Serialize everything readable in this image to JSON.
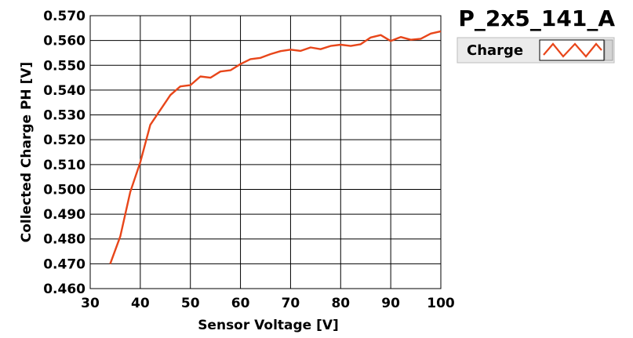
{
  "chart_data": {
    "type": "line",
    "title": "P_2x5_141_A",
    "xlabel": "Sensor Voltage [V]",
    "ylabel": "Collected Charge PH [V]",
    "xlim": [
      30,
      100
    ],
    "ylim": [
      0.46,
      0.57
    ],
    "xticks": [
      "30",
      "40",
      "50",
      "60",
      "70",
      "80",
      "90",
      "100"
    ],
    "yticks": [
      "0.460",
      "0.470",
      "0.480",
      "0.490",
      "0.500",
      "0.510",
      "0.520",
      "0.530",
      "0.540",
      "0.550",
      "0.560",
      "0.570"
    ],
    "grid": true,
    "legend": {
      "position": "top-right",
      "entries": [
        "Charge"
      ]
    },
    "series": [
      {
        "name": "Charge",
        "color": "#e8461a",
        "x": [
          34,
          36,
          38,
          40,
          42,
          44,
          46,
          48,
          50,
          52,
          54,
          56,
          58,
          60,
          62,
          64,
          66,
          68,
          70,
          72,
          74,
          76,
          78,
          80,
          82,
          84,
          86,
          88,
          90,
          92,
          94,
          96,
          98,
          100
        ],
        "y": [
          0.47,
          0.481,
          0.499,
          0.511,
          0.526,
          0.532,
          0.538,
          0.5415,
          0.542,
          0.5455,
          0.545,
          0.5475,
          0.548,
          0.5505,
          0.5525,
          0.553,
          0.5545,
          0.5557,
          0.5563,
          0.5558,
          0.5572,
          0.5565,
          0.5578,
          0.5583,
          0.5578,
          0.5585,
          0.5612,
          0.5622,
          0.5598,
          0.5614,
          0.5603,
          0.5607,
          0.5628,
          0.5637
        ]
      }
    ]
  }
}
